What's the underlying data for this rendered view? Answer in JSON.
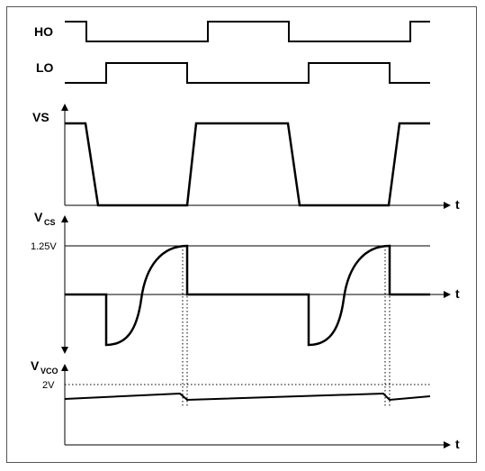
{
  "signals": {
    "ho": "HO",
    "lo": "LO",
    "vs": "VS",
    "vcs": {
      "main": "V",
      "sub": "CS"
    },
    "vvco": {
      "main": "V",
      "sub": "VCO"
    }
  },
  "axis_label": "t",
  "levels": {
    "vcs_ref": "1.25V",
    "vvco_ref": "2V"
  },
  "colors": {
    "line": "#000000",
    "frame": "#555555",
    "background": "#ffffff"
  }
}
